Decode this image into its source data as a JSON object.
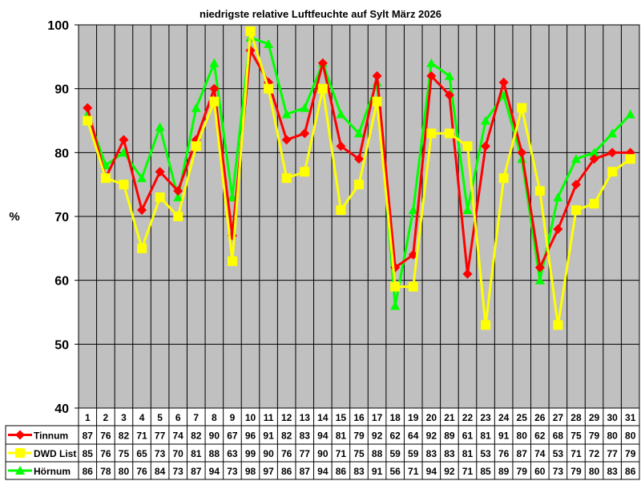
{
  "chart_data": {
    "type": "line",
    "title": "niedrigste relative Luftfeuchte auf Sylt März 2026",
    "xlabel": "",
    "ylabel": "%",
    "ylim": [
      40,
      100
    ],
    "yticks": [
      40,
      50,
      60,
      70,
      80,
      90,
      100
    ],
    "grid": true,
    "legend": "bottom-left (data table)",
    "categories": [
      "1",
      "2",
      "3",
      "4",
      "5",
      "6",
      "7",
      "8",
      "9",
      "10",
      "11",
      "12",
      "13",
      "14",
      "15",
      "16",
      "17",
      "18",
      "19",
      "20",
      "21",
      "22",
      "23",
      "24",
      "25",
      "26",
      "27",
      "28",
      "29",
      "30",
      "31"
    ],
    "series": [
      {
        "name": "Tinnum",
        "color": "#ff0000",
        "marker": "diamond",
        "values": [
          87,
          76,
          82,
          71,
          77,
          74,
          82,
          90,
          67,
          96,
          91,
          82,
          83,
          94,
          81,
          79,
          92,
          62,
          64,
          92,
          89,
          61,
          81,
          91,
          80,
          62,
          68,
          75,
          79,
          80,
          80
        ]
      },
      {
        "name": "DWD List",
        "color": "#ffff00",
        "marker": "square",
        "values": [
          85,
          76,
          75,
          65,
          73,
          70,
          81,
          88,
          63,
          99,
          90,
          76,
          77,
          90,
          71,
          75,
          88,
          59,
          59,
          83,
          83,
          81,
          53,
          76,
          87,
          74,
          53,
          71,
          72,
          77,
          79
        ]
      },
      {
        "name": "Hörnum",
        "color": "#00ff00",
        "marker": "triangle",
        "values": [
          86,
          78,
          80,
          76,
          84,
          73,
          87,
          94,
          73,
          98,
          97,
          86,
          87,
          94,
          86,
          83,
          91,
          56,
          71,
          94,
          92,
          71,
          85,
          89,
          79,
          60,
          73,
          79,
          80,
          83,
          86
        ]
      }
    ],
    "plot_background": "#c0c0c0"
  }
}
